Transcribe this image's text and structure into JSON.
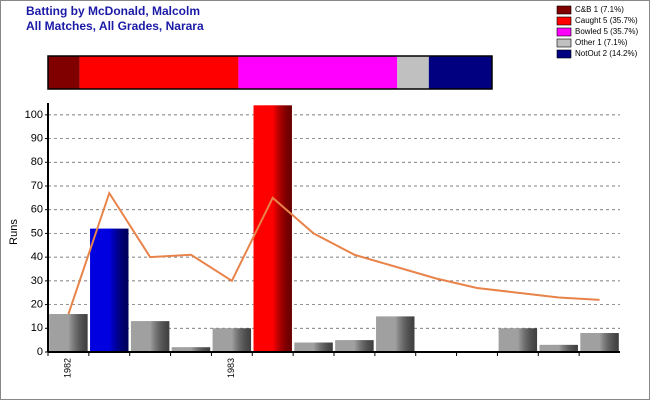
{
  "chart_data": {
    "type": "bar",
    "title": "Batting by McDonald, Malcolm",
    "subtitle": "All Matches, All Grades, Narara",
    "y_label": "Runs",
    "dismissals": {
      "names": [
        "C&B 1 (7.1%)",
        "Caught 5 (35.7%)",
        "Bowled 5 (35.7%)",
        "Other 1 (7.1%)",
        "NotOut 2 (14.2%)"
      ],
      "values": [
        7.1,
        35.7,
        35.7,
        7.1,
        14.2
      ],
      "colors": [
        "#800000",
        "#ff0000",
        "#ff00ff",
        "#c0c0c0",
        "#000080"
      ]
    },
    "categories": [
      "1982",
      null,
      null,
      null,
      "1983",
      null,
      null,
      null,
      null,
      null,
      null,
      null,
      null,
      null
    ],
    "values": [
      16,
      52,
      13,
      2,
      10,
      104,
      4,
      5,
      15,
      0,
      0,
      10,
      3,
      8
    ],
    "colors": [
      "#a0a0a0",
      "#0000e0",
      "#a0a0a0",
      "#a0a0a0",
      "#a0a0a0",
      "#ff0000",
      "#a0a0a0",
      "#a0a0a0",
      "#a0a0a0",
      "#a0a0a0",
      "#a0a0a0",
      "#a0a0a0",
      "#a0a0a0",
      "#a0a0a0"
    ],
    "line": {
      "color": "#e8834a",
      "values": [
        16,
        67,
        40,
        41,
        30,
        65,
        50,
        41,
        36,
        31,
        27,
        25,
        23,
        22
      ]
    },
    "ylim": [
      0,
      105
    ],
    "yticks": [
      0,
      10,
      20,
      30,
      40,
      50,
      60,
      70,
      80,
      90,
      100
    ],
    "grid": true
  }
}
